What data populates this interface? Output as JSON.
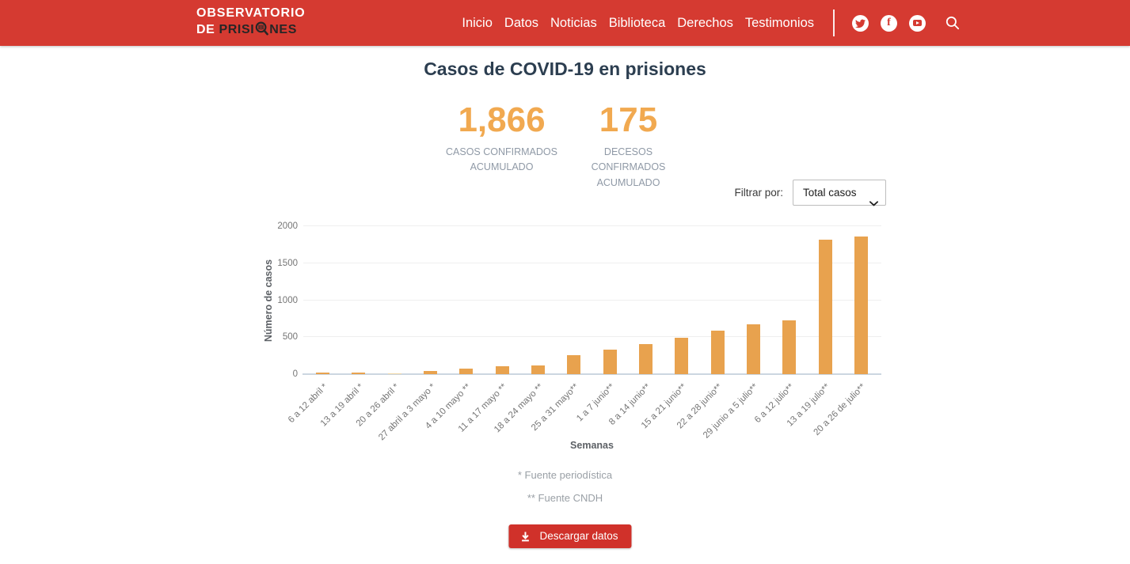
{
  "header": {
    "logo": {
      "line1": "OBSERVATORIO",
      "line2_white": "DE",
      "line2_dark_pre": "PRISI",
      "line2_dark_post": "NES"
    },
    "nav": [
      "Inicio",
      "Datos",
      "Noticias",
      "Biblioteca",
      "Derechos",
      "Testimonios"
    ],
    "social_icons": [
      "twitter-icon",
      "facebook-icon",
      "youtube-icon",
      "search-icon"
    ]
  },
  "main": {
    "title": "Casos de COVID-19 en prisiones",
    "stats": [
      {
        "value": "1,866",
        "label": "CASOS CONFIRMADOS ACUMULADO"
      },
      {
        "value": "175",
        "label": "DECESOS CONFIRMADOS ACUMULADO"
      }
    ],
    "filter": {
      "label": "Filtrar por:",
      "selected": "Total casos"
    },
    "footnotes": [
      "* Fuente periodística",
      "** Fuente CNDH"
    ],
    "download_button": "Descargar datos"
  },
  "chart_data": {
    "type": "bar",
    "title": "Casos de COVID-19 en prisiones",
    "xlabel": "Semanas",
    "ylabel": "Número de casos",
    "categories": [
      "6 a 12 abril *",
      "13 a 19 abril *",
      "20 a 26 abril *",
      "27 abril a 3 mayo *",
      "4 a 10 mayo **",
      "11 a 17 mayo **",
      "18 a 24 mayo **",
      "25 a 31 mayo**",
      "1 a 7 junio**",
      "8 a 14 junio**",
      "15 a 21 junio**",
      "22 a 28 junio**",
      "29 junio a 5 julio**",
      "6 a 12 julio**",
      "13 a 19 julio**",
      "20 a 26 de julio**"
    ],
    "values": [
      20,
      22,
      15,
      45,
      78,
      110,
      115,
      255,
      330,
      410,
      495,
      590,
      670,
      730,
      1820,
      1866
    ],
    "ylim": [
      0,
      2000
    ],
    "yticks": [
      0,
      500,
      1000,
      1500,
      2000
    ],
    "grid": true,
    "legend": false,
    "bar_color": "#e8a24e",
    "bar_color_light": "#f0d7a6",
    "light_bars": [
      2
    ]
  },
  "colors": {
    "header_bg": "#d53a31",
    "accent_orange": "#f1a950",
    "title_text": "#2c3e50",
    "button_bg": "#d0312a"
  }
}
